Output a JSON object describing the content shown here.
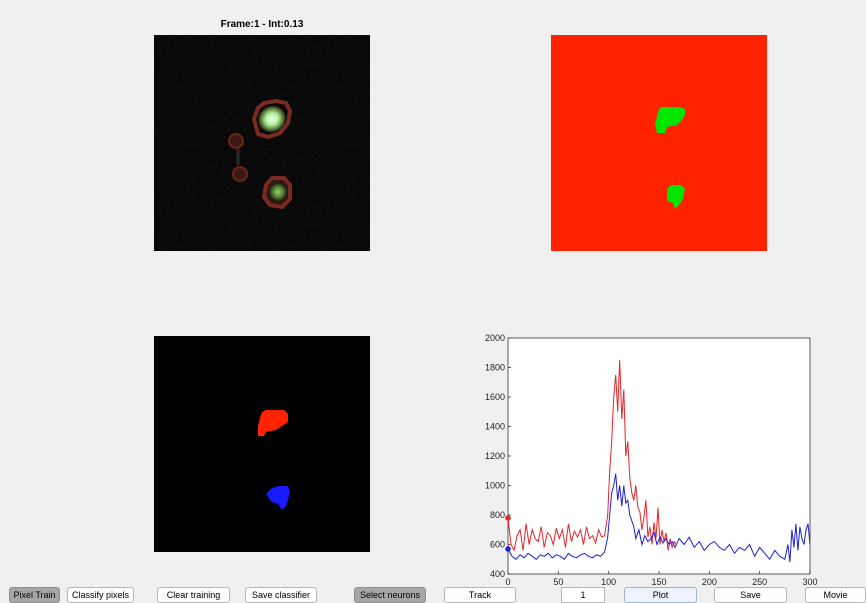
{
  "frame_title": "Frame:1 - Int:0.13",
  "colors": {
    "background_red": "#ff2200",
    "region_green": "#00e600",
    "neuron1_red": "#ff2200",
    "neuron2_blue": "#1a1aff",
    "trace_red": "#e8232a",
    "trace_blue": "#1f1fd6"
  },
  "toolbar": {
    "pixel_train": "Pixel Train",
    "classify_pixels": "Classify pixels",
    "clear_training": "Clear training",
    "save_classifier": "Save classifier",
    "select_neurons": "Select neurons",
    "track": "Track",
    "frame_value": "1",
    "plot": "Plot",
    "save": "Save",
    "movie": "Movie"
  },
  "chart_data": {
    "type": "line",
    "xlim": [
      0,
      300
    ],
    "ylim": [
      400,
      2000
    ],
    "xticks": [
      "0",
      "50",
      "100",
      "150",
      "200",
      "250",
      "300"
    ],
    "yticks": [
      "400",
      "600",
      "800",
      "1000",
      "1200",
      "1400",
      "1600",
      "1800",
      "2000"
    ],
    "grid": false,
    "legend": "none",
    "series": [
      {
        "color": "#e8232a",
        "marker_start": true,
        "x": [
          0,
          3,
          6,
          9,
          12,
          15,
          18,
          21,
          24,
          27,
          30,
          33,
          36,
          39,
          42,
          45,
          48,
          51,
          54,
          57,
          60,
          63,
          66,
          69,
          72,
          75,
          78,
          81,
          84,
          87,
          90,
          93,
          96,
          99,
          101,
          103,
          105,
          107,
          109,
          111,
          113,
          115,
          117,
          119,
          121,
          123,
          125,
          127,
          129,
          131,
          133,
          135,
          137,
          139,
          141,
          143,
          145,
          147,
          149,
          151,
          153,
          155,
          157,
          159,
          161,
          163,
          165,
          167
        ],
        "y": [
          780,
          600,
          560,
          660,
          700,
          560,
          740,
          600,
          700,
          640,
          620,
          720,
          580,
          680,
          660,
          600,
          710,
          640,
          700,
          580,
          740,
          620,
          690,
          650,
          700,
          600,
          720,
          640,
          660,
          610,
          700,
          650,
          660,
          800,
          1100,
          1300,
          1600,
          1750,
          1500,
          1850,
          1450,
          1650,
          1200,
          1300,
          1050,
          950,
          900,
          1000,
          850,
          820,
          700,
          780,
          900,
          650,
          720,
          600,
          750,
          640,
          850,
          600,
          700,
          620,
          680,
          560,
          640,
          580,
          620,
          600
        ]
      },
      {
        "color": "#1f1fd6",
        "marker_start": true,
        "x": [
          0,
          4,
          8,
          12,
          16,
          20,
          24,
          28,
          32,
          36,
          40,
          44,
          48,
          52,
          56,
          60,
          64,
          68,
          72,
          76,
          80,
          84,
          88,
          92,
          96,
          99,
          101,
          103,
          105,
          107,
          109,
          111,
          113,
          115,
          117,
          119,
          121,
          123,
          125,
          127,
          130,
          133,
          136,
          139,
          142,
          145,
          148,
          151,
          154,
          157,
          160,
          163,
          166,
          170,
          175,
          180,
          185,
          190,
          195,
          200,
          205,
          210,
          215,
          220,
          225,
          230,
          235,
          240,
          245,
          250,
          255,
          260,
          265,
          270,
          275,
          278,
          280,
          282,
          284,
          286,
          288,
          290,
          292,
          294,
          296,
          298,
          300
        ],
        "y": [
          570,
          520,
          500,
          530,
          510,
          540,
          520,
          500,
          530,
          520,
          540,
          510,
          530,
          520,
          500,
          540,
          520,
          510,
          530,
          540,
          520,
          510,
          530,
          520,
          550,
          650,
          800,
          950,
          1000,
          1080,
          900,
          1000,
          860,
          1000,
          880,
          900,
          800,
          760,
          720,
          640,
          700,
          600,
          660,
          620,
          640,
          680,
          600,
          650,
          610,
          640,
          600,
          620,
          580,
          640,
          600,
          650,
          580,
          620,
          560,
          600,
          620,
          580,
          560,
          600,
          540,
          580,
          560,
          600,
          520,
          580,
          540,
          500,
          560,
          520,
          500,
          600,
          480,
          700,
          580,
          740,
          560,
          720,
          640,
          600,
          700,
          740,
          600
        ]
      }
    ]
  }
}
